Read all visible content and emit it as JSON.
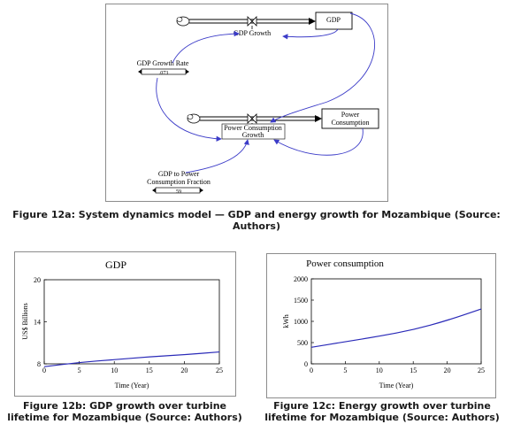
{
  "sd_model": {
    "gdp_stock": "GDP",
    "gdp_flow": "GDP Growth",
    "gdp_rate": "GDP Growth Rate",
    "gdp_rate_value": ".073",
    "pc_stock_line1": "Power",
    "pc_stock_line2": "Consumption",
    "pc_flow_line1": "Power Consumption",
    "pc_flow_line2": "Growth",
    "fraction_line1": "GDP to Power",
    "fraction_line2": "Consumption Fraction",
    "fraction_value": "59",
    "link_color": "#3c3cc8"
  },
  "captions": {
    "fig12a": "Figure 12a: System dynamics model — GDP and energy growth for Mozambique (Source: Authors)",
    "fig12b": "Figure 12b: GDP growth over turbine lifetime for Mozambique (Source: Authors)",
    "fig12c": "Figure 12c: Energy growth over turbine lifetime for Mozambique (Source: Authors)"
  },
  "chart_data": [
    {
      "type": "line",
      "title": "GDP",
      "xlabel": "Time (Year)",
      "ylabel": "US$ Billions",
      "xlim": [
        0,
        25
      ],
      "ylim": [
        8,
        20
      ],
      "xticks": [
        0,
        5,
        10,
        15,
        20,
        25
      ],
      "yticks": [
        8,
        14,
        20
      ],
      "grid": false,
      "line_color": "#2a2ab8",
      "x": [
        0,
        5,
        10,
        15,
        20,
        25
      ],
      "y": [
        7.6,
        8.2,
        8.6,
        9.0,
        9.3,
        9.7
      ]
    },
    {
      "type": "line",
      "title": "Power consumption",
      "xlabel": "Time (Year)",
      "ylabel": "kWh",
      "xlim": [
        0,
        25
      ],
      "ylim": [
        0,
        2000
      ],
      "xticks": [
        0,
        5,
        10,
        15,
        20,
        25
      ],
      "yticks": [
        0,
        500,
        1000,
        1500,
        2000
      ],
      "grid": false,
      "line_color": "#2a2ab8",
      "x": [
        0,
        5,
        10,
        15,
        20,
        25
      ],
      "y": [
        390,
        520,
        650,
        800,
        1020,
        1290
      ]
    }
  ]
}
